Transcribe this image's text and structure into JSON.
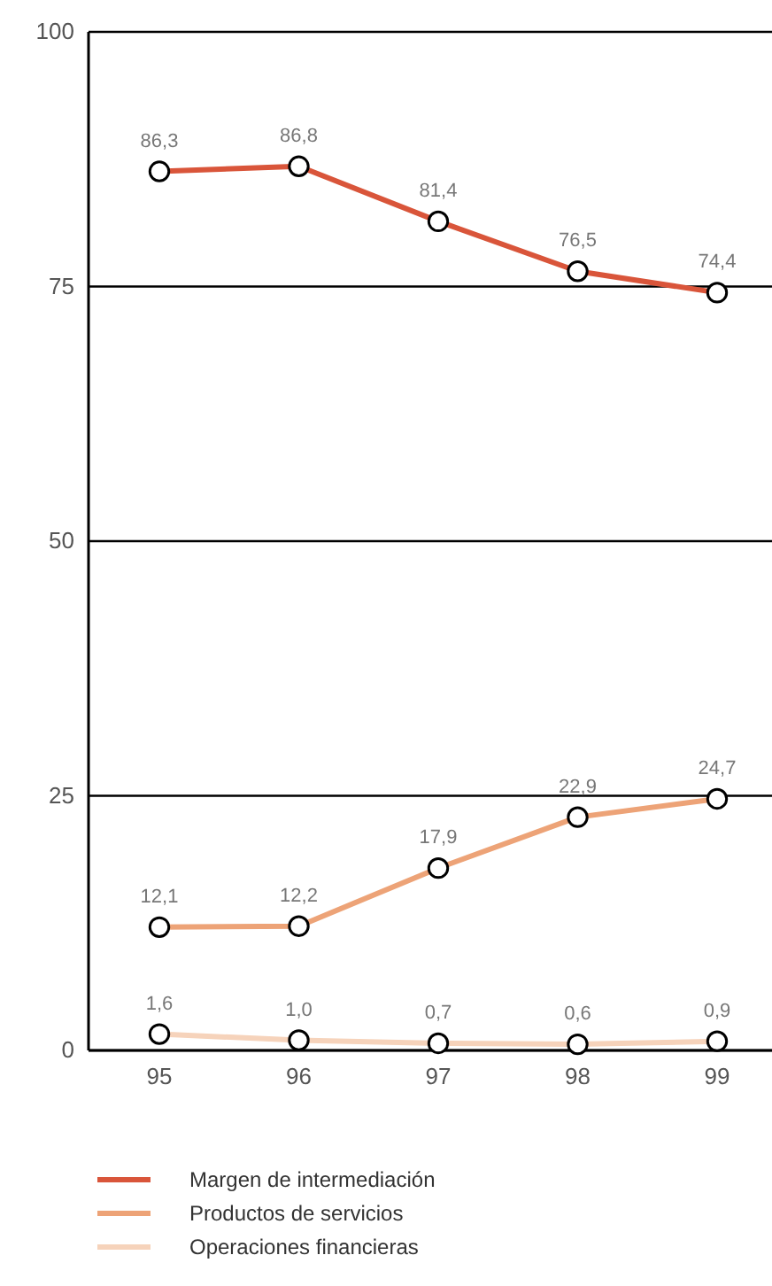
{
  "chart_data": {
    "type": "line",
    "categories": [
      "95",
      "96",
      "97",
      "98",
      "99"
    ],
    "ylim": [
      0,
      100
    ],
    "yticks": [
      0,
      25,
      50,
      75,
      100
    ],
    "grid": "y",
    "marker": "circle",
    "legend": "bottom",
    "line_style": "solid",
    "series": [
      {
        "name": "Margen de intermediación",
        "color": "#d9553a",
        "values": [
          86.3,
          86.8,
          81.4,
          76.5,
          74.4
        ],
        "value_labels": [
          "86,3",
          "86,8",
          "81,4",
          "76,5",
          "74,4"
        ]
      },
      {
        "name": "Productos de servicios",
        "color": "#eda377",
        "values": [
          12.1,
          12.2,
          17.9,
          22.9,
          24.7
        ],
        "value_labels": [
          "12,1",
          "12,2",
          "17,9",
          "22,9",
          "24,7"
        ]
      },
      {
        "name": "Operaciones financieras",
        "color": "#f6d3bb",
        "values": [
          1.6,
          1.0,
          0.7,
          0.6,
          0.9
        ],
        "value_labels": [
          "1,6",
          "1,0",
          "0,7",
          "0,6",
          "0,9"
        ]
      }
    ]
  }
}
